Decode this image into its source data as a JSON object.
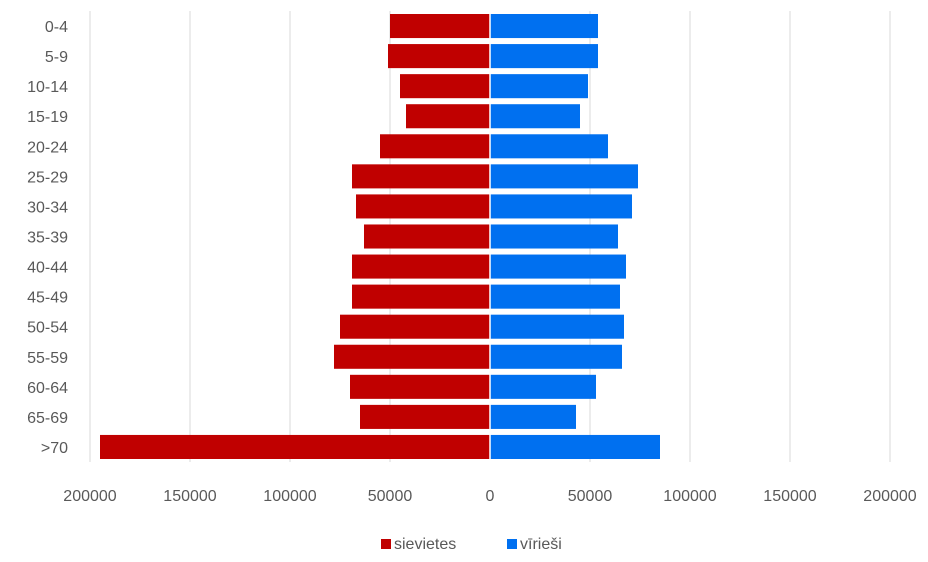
{
  "chart_data": {
    "type": "bar",
    "orientation": "horizontal",
    "layout": "population-pyramid",
    "categories": [
      "0-4",
      "5-9",
      "10-14",
      "15-19",
      "20-24",
      "25-29",
      "30-34",
      "35-39",
      "40-44",
      "45-49",
      "50-54",
      "55-59",
      "60-64",
      "65-69",
      ">70"
    ],
    "series": [
      {
        "name": "sievietes",
        "color": "#C00000",
        "direction": "left",
        "values": [
          50000,
          51000,
          45000,
          42000,
          55000,
          69000,
          67000,
          63000,
          69000,
          69000,
          75000,
          78000,
          70000,
          65000,
          195000
        ]
      },
      {
        "name": "vīrieši",
        "color": "#0070F0",
        "direction": "right",
        "values": [
          54000,
          54000,
          49000,
          45000,
          59000,
          74000,
          71000,
          64000,
          68000,
          65000,
          67000,
          66000,
          53000,
          43000,
          85000
        ]
      }
    ],
    "x_ticks": [
      "200000",
      "150000",
      "100000",
      "50000",
      "0",
      "50000",
      "100000",
      "150000",
      "200000"
    ],
    "xlim": [
      -200000,
      200000
    ],
    "title": "",
    "xlabel": "",
    "ylabel": "",
    "grid": "vertical",
    "legend_position": "bottom"
  }
}
